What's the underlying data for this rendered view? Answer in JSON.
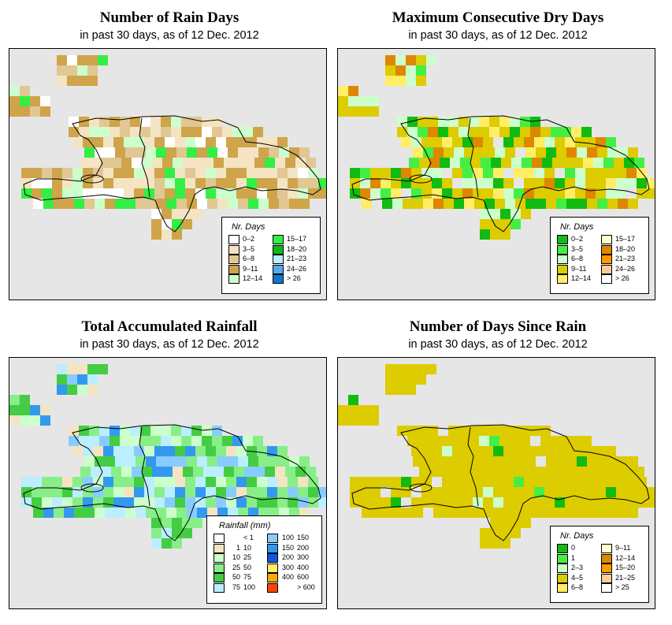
{
  "panels": [
    {
      "id": "rain-days",
      "title": "Number of Rain Days",
      "subtitle": "in past 30 days, as of  12 Dec. 2012",
      "legend": {
        "title": "Nr. Days",
        "items": [
          {
            "label": "0–2",
            "color": "#ffffff"
          },
          {
            "label": "3–5",
            "color": "#f4e4c3"
          },
          {
            "label": "6–8",
            "color": "#e0c793"
          },
          {
            "label": "9–11",
            "color": "#cfa44a"
          },
          {
            "label": "12–14",
            "color": "#ccffcc"
          },
          {
            "label": "15–17",
            "color": "#33ee44"
          },
          {
            "label": "18–20",
            "color": "#11b81a"
          },
          {
            "label": "21–23",
            "color": "#bbeeff"
          },
          {
            "label": "24–26",
            "color": "#55aaee"
          },
          {
            "label": "> 26",
            "color": "#1177cc"
          }
        ]
      }
    },
    {
      "id": "max-dry-days",
      "title": "Maximum Consecutive Dry Days",
      "subtitle": "in past 30 days, as of  12 Dec. 2012",
      "legend": {
        "title": "Nr. Days",
        "items": [
          {
            "label": "0–2",
            "color": "#11bb11"
          },
          {
            "label": "3–5",
            "color": "#44ee44"
          },
          {
            "label": "6–8",
            "color": "#ccffcc"
          },
          {
            "label": "9–11",
            "color": "#ddcc00"
          },
          {
            "label": "12–14",
            "color": "#ffee66"
          },
          {
            "label": "15–17",
            "color": "#ffffcc"
          },
          {
            "label": "18–20",
            "color": "#dd8800"
          },
          {
            "label": "21–23",
            "color": "#ff9900"
          },
          {
            "label": "24–26",
            "color": "#ffcc99"
          },
          {
            "label": "> 26",
            "color": "#ffffff"
          }
        ]
      }
    },
    {
      "id": "total-rainfall",
      "title": "Total Accumulated Rainfall",
      "subtitle": "in past 30 days, as of  12 Dec. 2012",
      "legend": {
        "title": "Rainfall (mm)",
        "items": [
          {
            "label_a": "",
            "label_b": "< 1",
            "color": "#ffffff"
          },
          {
            "label_a": "1",
            "label_b": "10",
            "color": "#f4e4c3"
          },
          {
            "label_a": "10",
            "label_b": "25",
            "color": "#ccffcc"
          },
          {
            "label_a": "25",
            "label_b": "50",
            "color": "#88ee88"
          },
          {
            "label_a": "50",
            "label_b": "75",
            "color": "#44cc44"
          },
          {
            "label_a": "75",
            "label_b": "100",
            "color": "#bbeeff"
          },
          {
            "label_a": "100",
            "label_b": "150",
            "color": "#88ccff"
          },
          {
            "label_a": "150",
            "label_b": "200",
            "color": "#3399ee"
          },
          {
            "label_a": "200",
            "label_b": "300",
            "color": "#1155dd"
          },
          {
            "label_a": "300",
            "label_b": "400",
            "color": "#ffee66"
          },
          {
            "label_a": "400",
            "label_b": "600",
            "color": "#ffaa00"
          },
          {
            "label_a": "",
            "label_b": "> 600",
            "color": "#ff4400"
          }
        ]
      }
    },
    {
      "id": "days-since-rain",
      "title": "Number of Days Since Rain",
      "subtitle": "in past 30 days, as of  12 Dec. 2012",
      "legend": {
        "title": "Nr. Days",
        "items": [
          {
            "label": "0",
            "color": "#11bb11"
          },
          {
            "label": "1",
            "color": "#44ee44"
          },
          {
            "label": "2–3",
            "color": "#ccffcc"
          },
          {
            "label": "4–5",
            "color": "#ddcc00"
          },
          {
            "label": "6–8",
            "color": "#ffee66"
          },
          {
            "label": "9–11",
            "color": "#ffffcc"
          },
          {
            "label": "12–14",
            "color": "#dd8800"
          },
          {
            "label": "15–20",
            "color": "#ff9900"
          },
          {
            "label": "21–25",
            "color": "#ffcc99"
          },
          {
            "label": "> 25",
            "color": "#ffffff"
          }
        ]
      }
    }
  ]
}
